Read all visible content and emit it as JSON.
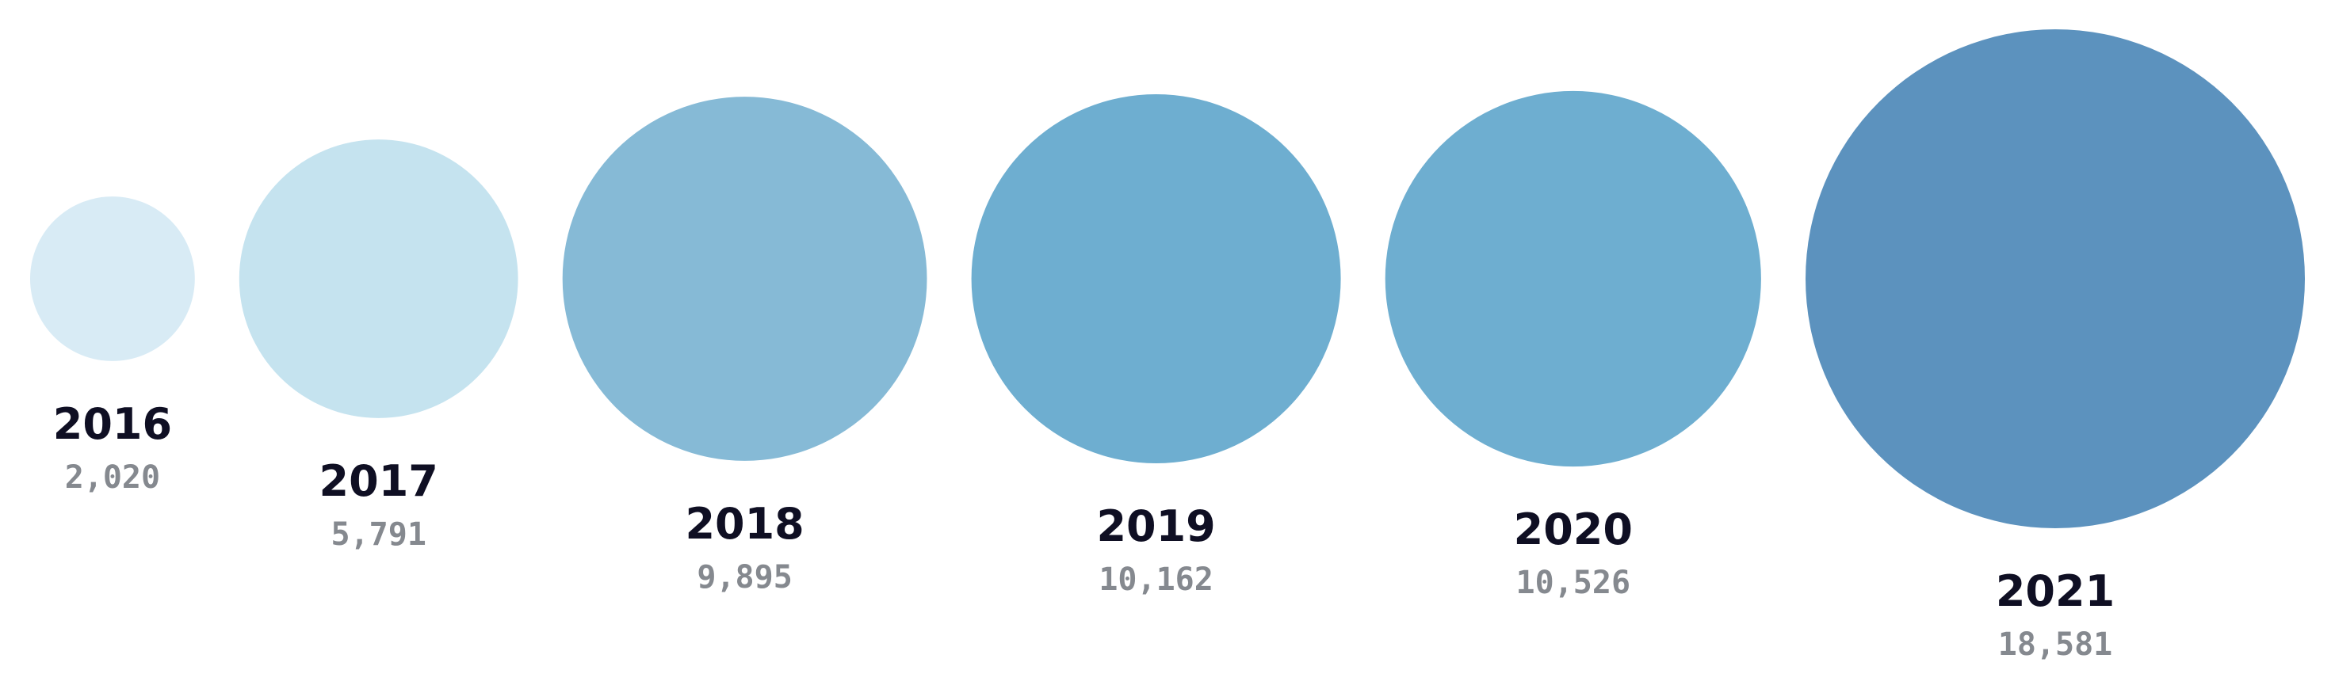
{
  "chart_data": {
    "type": "bubble",
    "title": "",
    "categories": [
      "2016",
      "2017",
      "2018",
      "2019",
      "2020",
      "2021"
    ],
    "values": [
      2020,
      5791,
      9895,
      10162,
      10526,
      18581
    ],
    "value_labels": [
      "2,020",
      "5,791",
      "9,895",
      "10,162",
      "10,526",
      "18,581"
    ],
    "colors": [
      "#d8ebf5",
      "#c5e3ef",
      "#86bad6",
      "#6eaed0",
      "#6eaed0",
      "#5c92be"
    ],
    "grid": false,
    "legend": "none"
  }
}
